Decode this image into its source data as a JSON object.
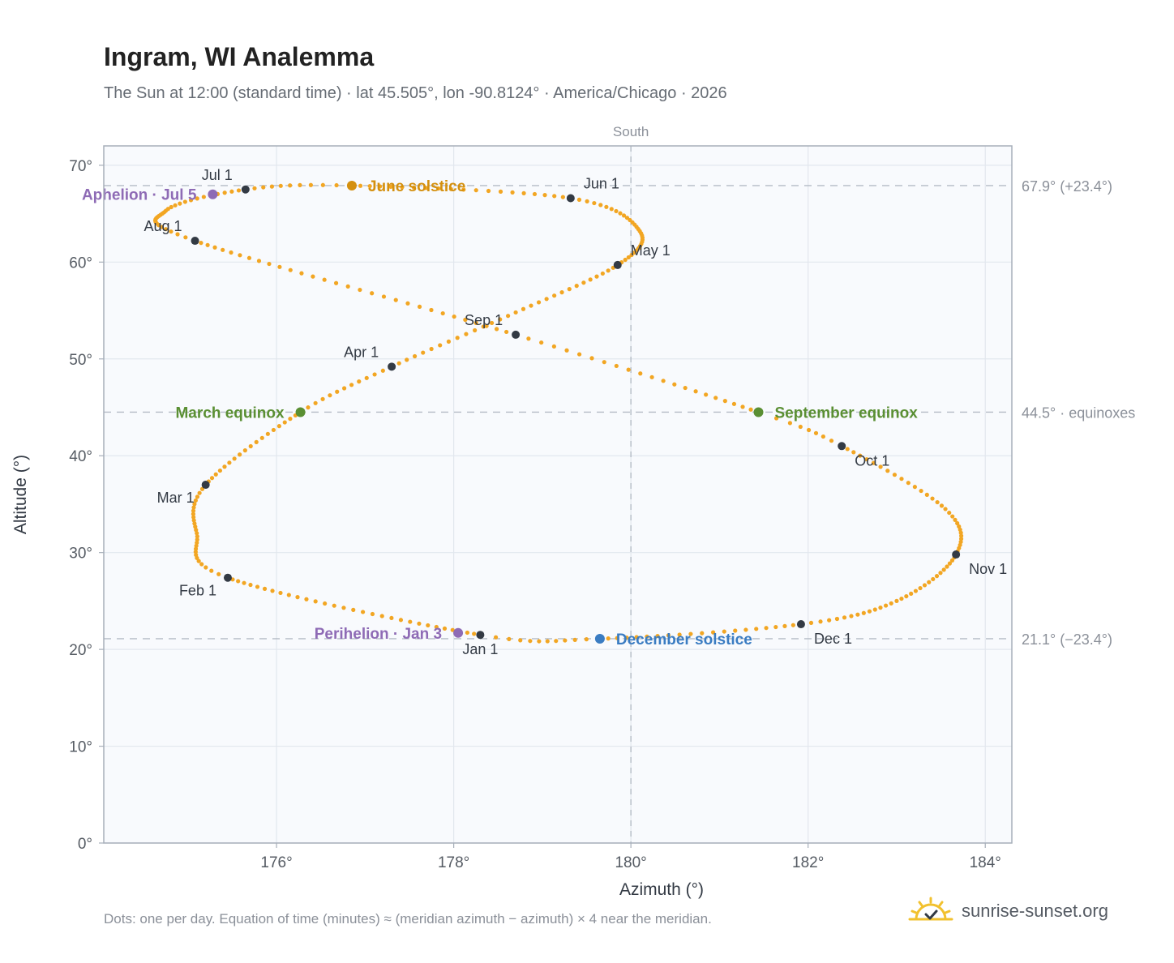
{
  "header": {
    "title": "Ingram, WI Analemma",
    "subtitle": "The Sun at 12:00 (standard time) · lat 45.505°, lon -90.8124° · America/Chicago · 2026"
  },
  "footer": {
    "note": "Dots: one per day. Equation of time (minutes) ≈ (meridian azimuth − azimuth) × 4 near the meridian.",
    "brand": "sunrise-sunset.org"
  },
  "colors": {
    "path": "#f2a623",
    "month_dot": "#333a44",
    "june_solstice": "#d4900f",
    "december_solstice": "#3a7cc2",
    "equinox": "#5a8f33",
    "apsis": "#8e6bb5",
    "reference_line": "#b4bcc6",
    "plot_bg": "#f8fafd",
    "grid": "#e2e7ee",
    "axis_text": "#555b63",
    "frame": "#a7afba"
  },
  "chart_data": {
    "type": "scatter",
    "title": "Ingram, WI Analemma",
    "xlabel": "Azimuth (°)",
    "ylabel": "Altitude (°)",
    "xlim": [
      174.05,
      184.3
    ],
    "ylim": [
      0,
      72
    ],
    "x_ticks": [
      {
        "value": 176,
        "label": "176°"
      },
      {
        "value": 178,
        "label": "178°"
      },
      {
        "value": 180,
        "label": "180°"
      },
      {
        "value": 182,
        "label": "182°"
      },
      {
        "value": 184,
        "label": "184°"
      }
    ],
    "y_ticks": [
      {
        "value": 0,
        "label": "0°"
      },
      {
        "value": 10,
        "label": "10°"
      },
      {
        "value": 20,
        "label": "20°"
      },
      {
        "value": 30,
        "label": "30°"
      },
      {
        "value": 40,
        "label": "40°"
      },
      {
        "value": 50,
        "label": "50°"
      },
      {
        "value": 60,
        "label": "60°"
      },
      {
        "value": 70,
        "label": "70°"
      }
    ],
    "grid": true,
    "meridian": {
      "azimuth": 180,
      "label": "South"
    },
    "reference_lines": [
      {
        "altitude": 67.9,
        "label": "67.9° (+23.4°)"
      },
      {
        "altitude": 44.5,
        "label": "44.5° · equinoxes"
      },
      {
        "altitude": 21.1,
        "label": "21.1° (−23.4°)"
      }
    ],
    "daily_path": {
      "points_per_day": 1,
      "days": 365,
      "anchors": [
        {
          "day": 0,
          "az": 178.3,
          "alt": 21.5
        },
        {
          "day": 31,
          "az": 175.45,
          "alt": 27.4
        },
        {
          "day": 45,
          "az": 175.1,
          "alt": 32.0
        },
        {
          "day": 59,
          "az": 175.2,
          "alt": 37.0
        },
        {
          "day": 78,
          "az": 176.27,
          "alt": 44.5
        },
        {
          "day": 90,
          "az": 177.3,
          "alt": 49.2
        },
        {
          "day": 105,
          "az": 178.7,
          "alt": 54.8
        },
        {
          "day": 120,
          "az": 179.85,
          "alt": 59.7
        },
        {
          "day": 135,
          "az": 180.1,
          "alt": 63.2
        },
        {
          "day": 151,
          "az": 179.32,
          "alt": 66.6
        },
        {
          "day": 171,
          "az": 176.85,
          "alt": 67.9
        },
        {
          "day": 181,
          "az": 175.65,
          "alt": 67.5
        },
        {
          "day": 195,
          "az": 174.75,
          "alt": 65.3
        },
        {
          "day": 212,
          "az": 175.08,
          "alt": 62.2
        },
        {
          "day": 243,
          "az": 178.7,
          "alt": 52.5
        },
        {
          "day": 265,
          "az": 181.44,
          "alt": 44.5
        },
        {
          "day": 273,
          "az": 182.38,
          "alt": 41.0
        },
        {
          "day": 290,
          "az": 183.55,
          "alt": 34.5
        },
        {
          "day": 304,
          "az": 183.67,
          "alt": 29.8
        },
        {
          "day": 320,
          "az": 183.0,
          "alt": 25.0
        },
        {
          "day": 334,
          "az": 181.92,
          "alt": 22.6
        },
        {
          "day": 354,
          "az": 179.65,
          "alt": 21.1
        },
        {
          "day": 365,
          "az": 178.3,
          "alt": 21.5
        }
      ]
    },
    "month_markers": [
      {
        "label": "Jan 1",
        "az": 178.3,
        "alt": 21.5,
        "anchor": "middle",
        "pos": "below"
      },
      {
        "label": "Feb 1",
        "az": 175.45,
        "alt": 27.4,
        "anchor": "end",
        "pos": "below-left"
      },
      {
        "label": "Mar 1",
        "az": 175.2,
        "alt": 37.0,
        "anchor": "end",
        "pos": "below-left"
      },
      {
        "label": "Apr 1",
        "az": 177.3,
        "alt": 49.2,
        "anchor": "end",
        "pos": "above-left"
      },
      {
        "label": "May 1",
        "az": 179.85,
        "alt": 59.7,
        "anchor": "start",
        "pos": "above-right"
      },
      {
        "label": "Jun 1",
        "az": 179.32,
        "alt": 66.6,
        "anchor": "start",
        "pos": "above-right"
      },
      {
        "label": "Jul 1",
        "az": 175.65,
        "alt": 67.5,
        "anchor": "end",
        "pos": "above-left"
      },
      {
        "label": "Aug 1",
        "az": 175.08,
        "alt": 62.2,
        "anchor": "end",
        "pos": "above-left"
      },
      {
        "label": "Sep 1",
        "az": 178.7,
        "alt": 52.5,
        "anchor": "end",
        "pos": "above-left"
      },
      {
        "label": "Oct 1",
        "az": 182.38,
        "alt": 41.0,
        "anchor": "start",
        "pos": "below-right"
      },
      {
        "label": "Nov 1",
        "az": 183.67,
        "alt": 29.8,
        "anchor": "start",
        "pos": "below-right"
      },
      {
        "label": "Dec 1",
        "az": 181.92,
        "alt": 22.6,
        "anchor": "start",
        "pos": "below-right"
      }
    ],
    "events": [
      {
        "name": "June solstice",
        "az": 176.85,
        "alt": 67.9,
        "color_key": "june_solstice",
        "side": "right"
      },
      {
        "name": "December solstice",
        "az": 179.65,
        "alt": 21.1,
        "color_key": "december_solstice",
        "side": "right"
      },
      {
        "name": "March equinox",
        "az": 176.27,
        "alt": 44.5,
        "color_key": "equinox",
        "side": "left"
      },
      {
        "name": "September equinox",
        "az": 181.44,
        "alt": 44.5,
        "color_key": "equinox",
        "side": "right"
      },
      {
        "name": "Aphelion · Jul 5",
        "az": 175.28,
        "alt": 67.0,
        "color_key": "apsis",
        "side": "left"
      },
      {
        "name": "Perihelion · Jan 3",
        "az": 178.05,
        "alt": 21.7,
        "color_key": "apsis",
        "side": "left"
      }
    ]
  }
}
